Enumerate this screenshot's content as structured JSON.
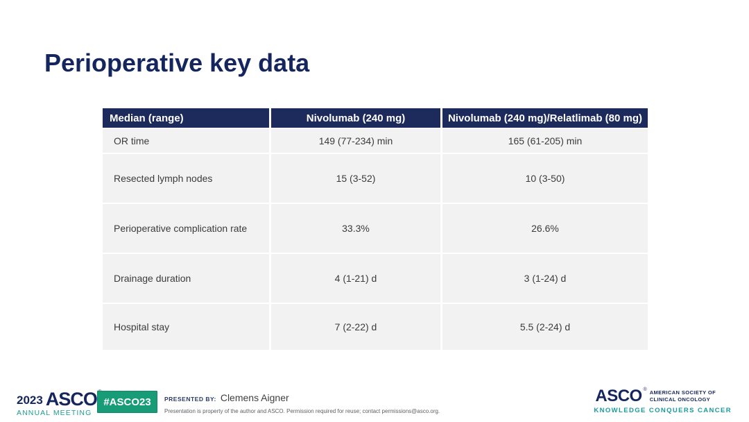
{
  "title": "Perioperative key data",
  "table": {
    "headers": [
      "Median (range)",
      "Nivolumab (240 mg)",
      "Nivolumab (240 mg)/Relatlimab (80 mg)"
    ],
    "rows": [
      {
        "label": "OR time",
        "nivolumab": "149 (77-234) min",
        "nivolumab_relatlimab": "165 (61-205) min"
      },
      {
        "label": "Resected lymph nodes",
        "nivolumab": "15 (3-52)",
        "nivolumab_relatlimab": "10 (3-50)"
      },
      {
        "label": "Perioperative complication rate",
        "nivolumab": "33.3%",
        "nivolumab_relatlimab": "26.6%"
      },
      {
        "label": "Drainage duration",
        "nivolumab": "4 (1-21) d",
        "nivolumab_relatlimab": "3 (1-24) d"
      },
      {
        "label": "Hospital stay",
        "nivolumab": "7 (2-22) d",
        "nivolumab_relatlimab": "5.5 (2-24) d"
      }
    ]
  },
  "footer": {
    "meeting_year": "2023",
    "meeting_logo": "ASCO",
    "meeting_name": "ANNUAL MEETING",
    "hashtag": "#ASCO23",
    "presented_by_label": "PRESENTED BY:",
    "presenter_name": "Clemens Aigner",
    "disclaimer": "Presentation is property of the author and ASCO. Permission required for reuse; contact permissions@asco.org.",
    "asco_logo": "ASCO",
    "society_line1": "AMERICAN SOCIETY OF",
    "society_line2": "CLINICAL ONCOLOGY",
    "tagline": "KNOWLEDGE CONQUERS CANCER",
    "registered_mark": "®"
  },
  "colors": {
    "title_navy": "#15265e",
    "table_header_bg": "#1d2a5c",
    "table_row_bg": "#f2f2f2",
    "badge_green": "#179c77",
    "meeting_teal": "#1d9c8e",
    "tagline_teal": "#1a9a9b"
  }
}
